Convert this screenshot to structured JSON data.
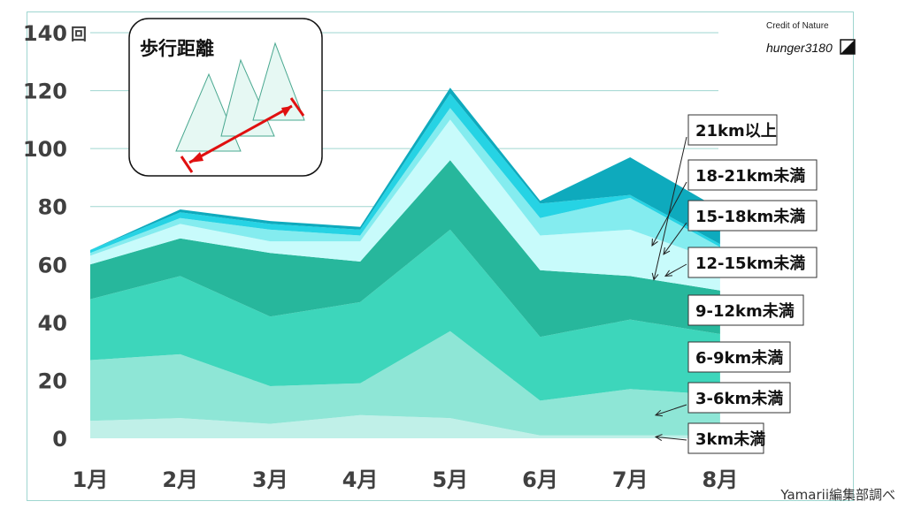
{
  "chart_data": {
    "type": "area",
    "stacked": true,
    "title": "歩行距離",
    "categories": [
      "1月",
      "2月",
      "3月",
      "4月",
      "5月",
      "6月",
      "7月",
      "8月"
    ],
    "y_unit_label": "回",
    "ylim": [
      0,
      140
    ],
    "yticks": [
      0,
      20,
      40,
      60,
      80,
      100,
      120,
      140
    ],
    "grid": true,
    "legend_placement": "right",
    "series": [
      {
        "name": "3km未満",
        "color": "#c0f0e8",
        "values": [
          6,
          7,
          5,
          8,
          7,
          1,
          1,
          1
        ]
      },
      {
        "name": "3-6km未満",
        "color": "#8ee6d6",
        "values": [
          21,
          22,
          13,
          11,
          30,
          12,
          16,
          14
        ]
      },
      {
        "name": "6-9km未満",
        "color": "#3dd6bb",
        "values": [
          21,
          27,
          24,
          28,
          35,
          22,
          24,
          21
        ]
      },
      {
        "name": "9-12km未満",
        "color": "#27b79c",
        "values": [
          12,
          13,
          22,
          14,
          24,
          23,
          15,
          15
        ]
      },
      {
        "name": "12-15km未満",
        "color": "#c8fbfb",
        "values": [
          3,
          5,
          4,
          7,
          14,
          12,
          16,
          10
        ]
      },
      {
        "name": "15-18km未満",
        "color": "#84ecef",
        "values": [
          1,
          2,
          4,
          2,
          4,
          6,
          11,
          5
        ]
      },
      {
        "name": "18-21km未満",
        "color": "#26d3e4",
        "values": [
          1,
          2,
          2,
          2,
          5,
          5,
          1,
          1
        ]
      },
      {
        "name": "21km以上",
        "color": "#0eaabd",
        "values": [
          0,
          1,
          1,
          1,
          2,
          1,
          13,
          12
        ]
      }
    ]
  },
  "credit": {
    "label": "Credit of Nature",
    "user": "hunger3180"
  },
  "source": "Yamarii編集部調べ",
  "colors": {
    "grid": "#9fd6d0",
    "axis_text": "#404040",
    "arrow": "#e01010",
    "triangle_fill": "#e6f8f3",
    "triangle_stroke": "#4aa890"
  }
}
